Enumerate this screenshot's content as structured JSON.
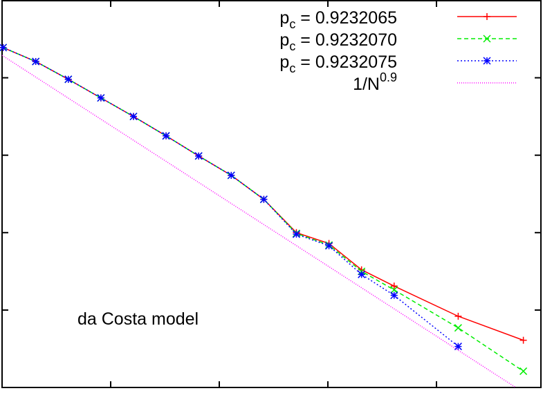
{
  "chart_data": {
    "type": "line",
    "title": "",
    "xlabel": "",
    "ylabel": "",
    "xlim": [
      0,
      5
    ],
    "ylim": [
      0,
      5
    ],
    "xticks": [
      1,
      2,
      3,
      4
    ],
    "yticks": [
      1,
      2,
      3,
      4
    ],
    "grid": false,
    "legend_placement": "top-right",
    "annotation": "da Costa model",
    "series": [
      {
        "name_prefix": "p",
        "name_sub": "c",
        "name_rest": " = 0.9232065",
        "color": "#ff0000",
        "dash": "",
        "marker": "plus",
        "x": [
          0.01,
          0.31,
          0.61,
          0.91,
          1.21,
          1.51,
          1.81,
          2.11,
          2.41,
          2.71,
          3.01,
          3.31,
          3.61,
          4.2,
          4.8
        ],
        "y": [
          4.39,
          4.21,
          3.98,
          3.74,
          3.5,
          3.25,
          2.99,
          2.74,
          2.43,
          2.0,
          1.86,
          1.52,
          1.31,
          0.92,
          0.61
        ]
      },
      {
        "name_prefix": "p",
        "name_sub": "c",
        "name_rest": " = 0.9232070",
        "color": "#00ee00",
        "dash": "6,4",
        "marker": "cross",
        "x": [
          0.01,
          0.31,
          0.61,
          0.91,
          1.21,
          1.51,
          1.81,
          2.11,
          2.41,
          2.71,
          3.01,
          3.31,
          3.61,
          4.2,
          4.8
        ],
        "y": [
          4.39,
          4.21,
          3.98,
          3.74,
          3.5,
          3.25,
          2.99,
          2.74,
          2.43,
          1.99,
          1.84,
          1.5,
          1.26,
          0.77,
          0.21
        ]
      },
      {
        "name_prefix": "p",
        "name_sub": "c",
        "name_rest": " = 0.9232075",
        "color": "#0000ff",
        "dash": "2,3",
        "marker": "star",
        "x": [
          0.01,
          0.31,
          0.61,
          0.91,
          1.21,
          1.51,
          1.81,
          2.11,
          2.41,
          2.71,
          3.01,
          3.31,
          3.61,
          4.2
        ],
        "y": [
          4.39,
          4.21,
          3.98,
          3.74,
          3.5,
          3.25,
          2.99,
          2.74,
          2.43,
          1.98,
          1.83,
          1.46,
          1.19,
          0.53
        ]
      },
      {
        "name_prefix": "1/N",
        "name_sup": "0.9",
        "color": "#ff00ff",
        "dash": "1,2",
        "marker": "none",
        "x": [
          0,
          4.73
        ],
        "y": [
          4.29,
          0
        ]
      }
    ]
  }
}
